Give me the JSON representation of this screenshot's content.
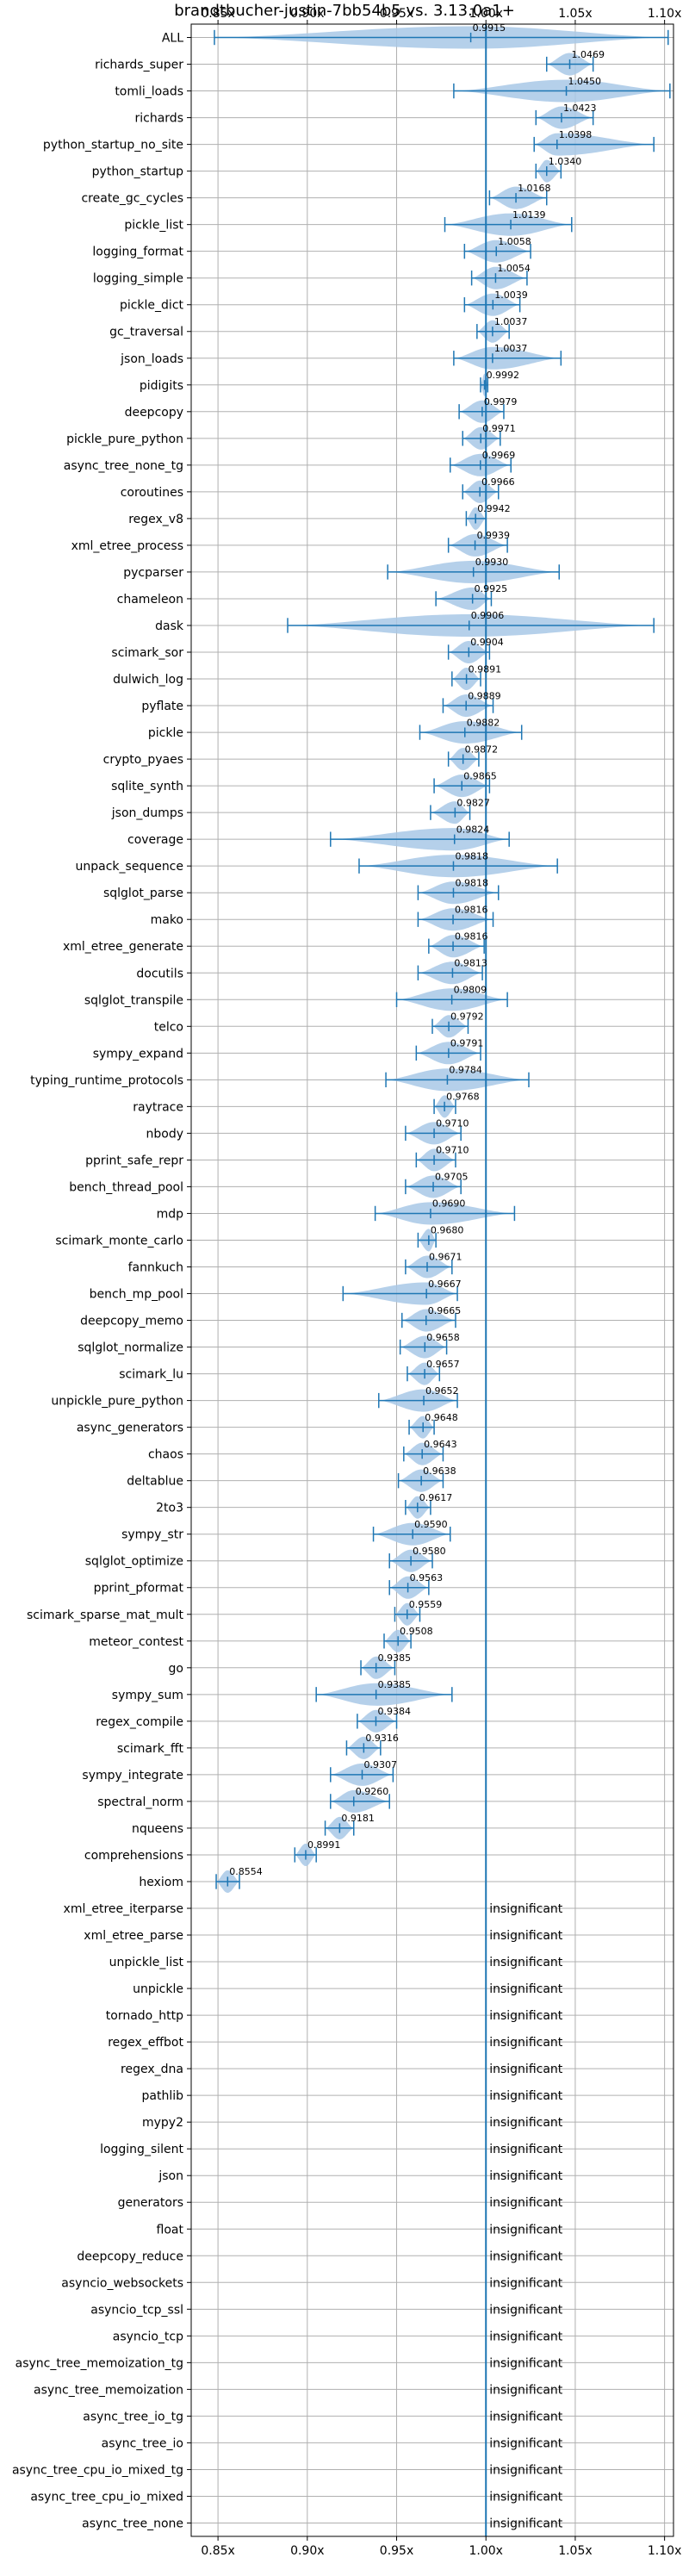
{
  "chart_data": {
    "type": "violin",
    "title": "brandtbucher-justin-7bb54b5 vs. 3.13.0a1+",
    "xlabel": "",
    "ylabel": "",
    "xlim": [
      0.835,
      1.105
    ],
    "x_ticks": [
      0.85,
      0.9,
      0.95,
      1.0,
      1.05,
      1.1
    ],
    "x_tick_labels": [
      "0.85x",
      "0.90x",
      "0.95x",
      "1.00x",
      "1.05x",
      "1.10x"
    ],
    "reference_line": 1.0,
    "grid": true,
    "colors": {
      "violin": "#a8c8e6",
      "line": "#1f77b4",
      "grid": "#b0b0b0"
    },
    "insignificant_label": "insignificant",
    "benchmarks": [
      {
        "name": "ALL",
        "median": 0.9915,
        "min": 0.848,
        "max": 1.102,
        "label": "0.9915"
      },
      {
        "name": "richards_super",
        "median": 1.0469,
        "min": 1.034,
        "max": 1.06,
        "label": "1.0469"
      },
      {
        "name": "tomli_loads",
        "median": 1.045,
        "min": 0.982,
        "max": 1.103,
        "label": "1.0450"
      },
      {
        "name": "richards",
        "median": 1.0423,
        "min": 1.028,
        "max": 1.06,
        "label": "1.0423"
      },
      {
        "name": "python_startup_no_site",
        "median": 1.0398,
        "min": 1.027,
        "max": 1.094,
        "label": "1.0398"
      },
      {
        "name": "python_startup",
        "median": 1.034,
        "min": 1.028,
        "max": 1.042,
        "label": "1.0340"
      },
      {
        "name": "create_gc_cycles",
        "median": 1.0168,
        "min": 1.002,
        "max": 1.034,
        "label": "1.0168"
      },
      {
        "name": "pickle_list",
        "median": 1.0139,
        "min": 0.977,
        "max": 1.048,
        "label": "1.0139"
      },
      {
        "name": "logging_format",
        "median": 1.0058,
        "min": 0.988,
        "max": 1.025,
        "label": "1.0058"
      },
      {
        "name": "logging_simple",
        "median": 1.0054,
        "min": 0.992,
        "max": 1.023,
        "label": "1.0054"
      },
      {
        "name": "pickle_dict",
        "median": 1.0039,
        "min": 0.988,
        "max": 1.019,
        "label": "1.0039"
      },
      {
        "name": "gc_traversal",
        "median": 1.0037,
        "min": 0.995,
        "max": 1.013,
        "label": "1.0037"
      },
      {
        "name": "json_loads",
        "median": 1.0037,
        "min": 0.982,
        "max": 1.042,
        "label": "1.0037"
      },
      {
        "name": "pidigits",
        "median": 0.9992,
        "min": 0.997,
        "max": 1.001,
        "label": "0.9992"
      },
      {
        "name": "deepcopy",
        "median": 0.9979,
        "min": 0.985,
        "max": 1.01,
        "label": "0.9979"
      },
      {
        "name": "pickle_pure_python",
        "median": 0.9971,
        "min": 0.987,
        "max": 1.008,
        "label": "0.9971"
      },
      {
        "name": "async_tree_none_tg",
        "median": 0.9969,
        "min": 0.98,
        "max": 1.014,
        "label": "0.9969"
      },
      {
        "name": "coroutines",
        "median": 0.9966,
        "min": 0.987,
        "max": 1.007,
        "label": "0.9966"
      },
      {
        "name": "regex_v8",
        "median": 0.9942,
        "min": 0.989,
        "max": 1.0,
        "label": "0.9942"
      },
      {
        "name": "xml_etree_process",
        "median": 0.9939,
        "min": 0.979,
        "max": 1.012,
        "label": "0.9939"
      },
      {
        "name": "pycparser",
        "median": 0.993,
        "min": 0.945,
        "max": 1.041,
        "label": "0.9930"
      },
      {
        "name": "chameleon",
        "median": 0.9925,
        "min": 0.972,
        "max": 1.003,
        "label": "0.9925"
      },
      {
        "name": "dask",
        "median": 0.9906,
        "min": 0.889,
        "max": 1.094,
        "label": "0.9906"
      },
      {
        "name": "scimark_sor",
        "median": 0.9904,
        "min": 0.979,
        "max": 1.002,
        "label": "0.9904"
      },
      {
        "name": "dulwich_log",
        "median": 0.9891,
        "min": 0.981,
        "max": 0.997,
        "label": "0.9891"
      },
      {
        "name": "pyflate",
        "median": 0.9889,
        "min": 0.976,
        "max": 1.004,
        "label": "0.9889"
      },
      {
        "name": "pickle",
        "median": 0.9882,
        "min": 0.963,
        "max": 1.02,
        "label": "0.9882"
      },
      {
        "name": "crypto_pyaes",
        "median": 0.9872,
        "min": 0.979,
        "max": 0.996,
        "label": "0.9872"
      },
      {
        "name": "sqlite_synth",
        "median": 0.9865,
        "min": 0.971,
        "max": 1.002,
        "label": "0.9865"
      },
      {
        "name": "json_dumps",
        "median": 0.9827,
        "min": 0.969,
        "max": 0.991,
        "label": "0.9827"
      },
      {
        "name": "coverage",
        "median": 0.9824,
        "min": 0.913,
        "max": 1.013,
        "label": "0.9824"
      },
      {
        "name": "unpack_sequence",
        "median": 0.9818,
        "min": 0.929,
        "max": 1.04,
        "label": "0.9818"
      },
      {
        "name": "sqlglot_parse",
        "median": 0.9818,
        "min": 0.962,
        "max": 1.007,
        "label": "0.9818"
      },
      {
        "name": "mako",
        "median": 0.9816,
        "min": 0.962,
        "max": 1.004,
        "label": "0.9816"
      },
      {
        "name": "xml_etree_generate",
        "median": 0.9816,
        "min": 0.968,
        "max": 0.999,
        "label": "0.9816"
      },
      {
        "name": "docutils",
        "median": 0.9813,
        "min": 0.962,
        "max": 0.998,
        "label": "0.9813"
      },
      {
        "name": "sqlglot_transpile",
        "median": 0.9809,
        "min": 0.95,
        "max": 1.012,
        "label": "0.9809"
      },
      {
        "name": "telco",
        "median": 0.9792,
        "min": 0.97,
        "max": 0.99,
        "label": "0.9792"
      },
      {
        "name": "sympy_expand",
        "median": 0.9791,
        "min": 0.961,
        "max": 0.997,
        "label": "0.9791"
      },
      {
        "name": "typing_runtime_protocols",
        "median": 0.9784,
        "min": 0.944,
        "max": 1.024,
        "label": "0.9784"
      },
      {
        "name": "raytrace",
        "median": 0.9768,
        "min": 0.971,
        "max": 0.983,
        "label": "0.9768"
      },
      {
        "name": "nbody",
        "median": 0.971,
        "min": 0.955,
        "max": 0.986,
        "label": "0.9710"
      },
      {
        "name": "pprint_safe_repr",
        "median": 0.971,
        "min": 0.961,
        "max": 0.983,
        "label": "0.9710"
      },
      {
        "name": "bench_thread_pool",
        "median": 0.9705,
        "min": 0.955,
        "max": 0.986,
        "label": "0.9705"
      },
      {
        "name": "mdp",
        "median": 0.969,
        "min": 0.938,
        "max": 1.016,
        "label": "0.9690"
      },
      {
        "name": "scimark_monte_carlo",
        "median": 0.968,
        "min": 0.962,
        "max": 0.972,
        "label": "0.9680"
      },
      {
        "name": "fannkuch",
        "median": 0.9671,
        "min": 0.955,
        "max": 0.981,
        "label": "0.9671"
      },
      {
        "name": "bench_mp_pool",
        "median": 0.9667,
        "min": 0.92,
        "max": 0.984,
        "label": "0.9667"
      },
      {
        "name": "deepcopy_memo",
        "median": 0.9665,
        "min": 0.953,
        "max": 0.983,
        "label": "0.9665"
      },
      {
        "name": "sqlglot_normalize",
        "median": 0.9658,
        "min": 0.952,
        "max": 0.978,
        "label": "0.9658"
      },
      {
        "name": "scimark_lu",
        "median": 0.9657,
        "min": 0.956,
        "max": 0.974,
        "label": "0.9657"
      },
      {
        "name": "unpickle_pure_python",
        "median": 0.9652,
        "min": 0.94,
        "max": 0.984,
        "label": "0.9652"
      },
      {
        "name": "async_generators",
        "median": 0.9648,
        "min": 0.957,
        "max": 0.971,
        "label": "0.9648"
      },
      {
        "name": "chaos",
        "median": 0.9643,
        "min": 0.954,
        "max": 0.976,
        "label": "0.9643"
      },
      {
        "name": "deltablue",
        "median": 0.9638,
        "min": 0.951,
        "max": 0.976,
        "label": "0.9638"
      },
      {
        "name": "2to3",
        "median": 0.9617,
        "min": 0.955,
        "max": 0.969,
        "label": "0.9617"
      },
      {
        "name": "sympy_str",
        "median": 0.959,
        "min": 0.937,
        "max": 0.98,
        "label": "0.9590"
      },
      {
        "name": "sqlglot_optimize",
        "median": 0.958,
        "min": 0.946,
        "max": 0.97,
        "label": "0.9580"
      },
      {
        "name": "pprint_pformat",
        "median": 0.9563,
        "min": 0.946,
        "max": 0.968,
        "label": "0.9563"
      },
      {
        "name": "scimark_sparse_mat_mult",
        "median": 0.9559,
        "min": 0.949,
        "max": 0.963,
        "label": "0.9559"
      },
      {
        "name": "meteor_contest",
        "median": 0.9508,
        "min": 0.943,
        "max": 0.958,
        "label": "0.9508"
      },
      {
        "name": "go",
        "median": 0.9385,
        "min": 0.93,
        "max": 0.949,
        "label": "0.9385"
      },
      {
        "name": "sympy_sum",
        "median": 0.9385,
        "min": 0.905,
        "max": 0.981,
        "label": "0.9385"
      },
      {
        "name": "regex_compile",
        "median": 0.9384,
        "min": 0.928,
        "max": 0.95,
        "label": "0.9384"
      },
      {
        "name": "scimark_fft",
        "median": 0.9316,
        "min": 0.922,
        "max": 0.941,
        "label": "0.9316"
      },
      {
        "name": "sympy_integrate",
        "median": 0.9307,
        "min": 0.913,
        "max": 0.948,
        "label": "0.9307"
      },
      {
        "name": "spectral_norm",
        "median": 0.926,
        "min": 0.913,
        "max": 0.946,
        "label": "0.9260"
      },
      {
        "name": "nqueens",
        "median": 0.9181,
        "min": 0.91,
        "max": 0.926,
        "label": "0.9181"
      },
      {
        "name": "comprehensions",
        "median": 0.8991,
        "min": 0.893,
        "max": 0.905,
        "label": "0.8991"
      },
      {
        "name": "hexiom",
        "median": 0.8554,
        "min": 0.849,
        "max": 0.862,
        "label": "0.8554"
      },
      {
        "name": "xml_etree_iterparse",
        "insignificant": true
      },
      {
        "name": "xml_etree_parse",
        "insignificant": true
      },
      {
        "name": "unpickle_list",
        "insignificant": true
      },
      {
        "name": "unpickle",
        "insignificant": true
      },
      {
        "name": "tornado_http",
        "insignificant": true
      },
      {
        "name": "regex_effbot",
        "insignificant": true
      },
      {
        "name": "regex_dna",
        "insignificant": true
      },
      {
        "name": "pathlib",
        "insignificant": true
      },
      {
        "name": "mypy2",
        "insignificant": true
      },
      {
        "name": "logging_silent",
        "insignificant": true
      },
      {
        "name": "json",
        "insignificant": true
      },
      {
        "name": "generators",
        "insignificant": true
      },
      {
        "name": "float",
        "insignificant": true
      },
      {
        "name": "deepcopy_reduce",
        "insignificant": true
      },
      {
        "name": "asyncio_websockets",
        "insignificant": true
      },
      {
        "name": "asyncio_tcp_ssl",
        "insignificant": true
      },
      {
        "name": "asyncio_tcp",
        "insignificant": true
      },
      {
        "name": "async_tree_memoization_tg",
        "insignificant": true
      },
      {
        "name": "async_tree_memoization",
        "insignificant": true
      },
      {
        "name": "async_tree_io_tg",
        "insignificant": true
      },
      {
        "name": "async_tree_io",
        "insignificant": true
      },
      {
        "name": "async_tree_cpu_io_mixed_tg",
        "insignificant": true
      },
      {
        "name": "async_tree_cpu_io_mixed",
        "insignificant": true
      },
      {
        "name": "async_tree_none",
        "insignificant": true
      }
    ]
  }
}
